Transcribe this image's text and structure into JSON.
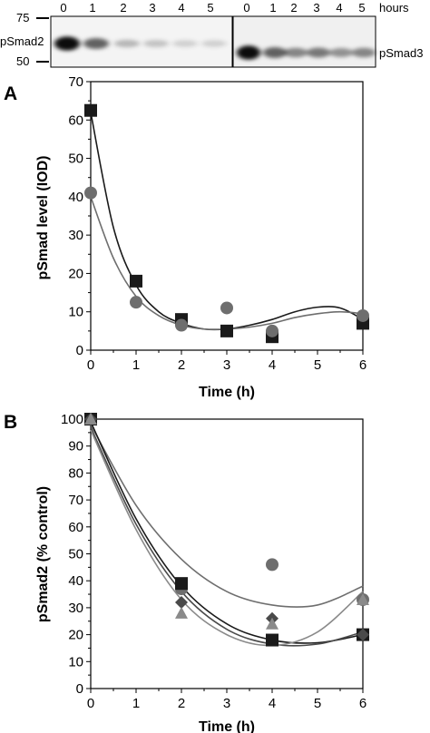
{
  "blot": {
    "time_labels_left": [
      "0",
      "1",
      "2",
      "3",
      "4",
      "5"
    ],
    "time_labels_right": [
      "0",
      "1",
      "2",
      "3",
      "4",
      "5"
    ],
    "hours_label": "hours",
    "marker_75": "75",
    "marker_50": "50",
    "band_label_left": "pSmad2",
    "band_label_right": "pSmad3",
    "left_band_intensity": [
      0.95,
      0.6,
      0.25,
      0.2,
      0.15,
      0.15
    ],
    "right_band_intensity": [
      0.95,
      0.6,
      0.45,
      0.5,
      0.4,
      0.45
    ]
  },
  "chart_data": [
    {
      "type": "scatter",
      "panel": "A",
      "xlabel": "Time (h)",
      "ylabel": "pSmad level (IOD)",
      "xlim": [
        0,
        6
      ],
      "ylim": [
        0,
        70
      ],
      "xticks": [
        0,
        1,
        2,
        3,
        4,
        5,
        6
      ],
      "yticks": [
        0,
        10,
        20,
        30,
        40,
        50,
        60,
        70
      ],
      "grid": false,
      "series": [
        {
          "marker": "square",
          "color": "#1a1a1a",
          "points": [
            [
              0,
              62.5
            ],
            [
              1,
              18
            ],
            [
              2,
              8
            ],
            [
              3,
              5
            ],
            [
              4,
              3.5
            ],
            [
              6,
              7
            ]
          ],
          "fit": [
            [
              0,
              62
            ],
            [
              0.5,
              32
            ],
            [
              1,
              17
            ],
            [
              1.5,
              10
            ],
            [
              2,
              7
            ],
            [
              2.5,
              5.5
            ],
            [
              3,
              5.5
            ],
            [
              3.5,
              6.5
            ],
            [
              4,
              8
            ],
            [
              4.5,
              10
            ],
            [
              5,
              11.2
            ],
            [
              5.5,
              11
            ],
            [
              6,
              8
            ]
          ]
        },
        {
          "marker": "circle",
          "color": "#6e6e6e",
          "points": [
            [
              0,
              41
            ],
            [
              1,
              12.5
            ],
            [
              2,
              6.5
            ],
            [
              3,
              11
            ],
            [
              4,
              5
            ],
            [
              6,
              9
            ]
          ],
          "fit": [
            [
              0,
              40
            ],
            [
              0.5,
              24
            ],
            [
              1,
              14
            ],
            [
              1.5,
              9
            ],
            [
              2,
              6.5
            ],
            [
              2.5,
              5.5
            ],
            [
              3,
              5.5
            ],
            [
              3.5,
              6
            ],
            [
              4,
              7
            ],
            [
              4.5,
              8.5
            ],
            [
              5,
              9.5
            ],
            [
              5.5,
              10
            ],
            [
              6,
              9.5
            ]
          ]
        }
      ]
    },
    {
      "type": "scatter",
      "panel": "B",
      "xlabel": "Time (h)",
      "ylabel": "pSmad2 (% control)",
      "xlim": [
        0,
        6
      ],
      "ylim": [
        0,
        100
      ],
      "xticks": [
        0,
        1,
        2,
        3,
        4,
        5,
        6
      ],
      "yticks": [
        0,
        10,
        20,
        30,
        40,
        50,
        60,
        70,
        80,
        90,
        100
      ],
      "grid": false,
      "series": [
        {
          "marker": "circle",
          "color": "#6e6e6e",
          "points": [
            [
              0,
              100
            ],
            [
              2,
              37
            ],
            [
              4,
              46
            ],
            [
              6,
              33
            ]
          ],
          "fit": [
            [
              0,
              98
            ],
            [
              1,
              68
            ],
            [
              2,
              48
            ],
            [
              3,
              36
            ],
            [
              4,
              31
            ],
            [
              5,
              31
            ],
            [
              6,
              38
            ]
          ]
        },
        {
          "marker": "square",
          "color": "#1a1a1a",
          "points": [
            [
              0,
              100
            ],
            [
              2,
              39
            ],
            [
              4,
              18
            ],
            [
              6,
              20
            ]
          ],
          "fit": [
            [
              0,
              99
            ],
            [
              1,
              63
            ],
            [
              2,
              38
            ],
            [
              3,
              24
            ],
            [
              4,
              18
            ],
            [
              5,
              17
            ],
            [
              6,
              20
            ]
          ]
        },
        {
          "marker": "diamond",
          "color": "#4a4a4a",
          "points": [
            [
              0,
              100
            ],
            [
              2,
              32
            ],
            [
              4,
              26
            ],
            [
              6,
              20
            ]
          ],
          "fit": [
            [
              0,
              97
            ],
            [
              1,
              61
            ],
            [
              2,
              36
            ],
            [
              3,
              22
            ],
            [
              4,
              16.5
            ],
            [
              5,
              16.5
            ],
            [
              6,
              21
            ]
          ]
        },
        {
          "marker": "triangle",
          "color": "#8a8a8a",
          "points": [
            [
              0,
              100
            ],
            [
              2,
              28
            ],
            [
              4,
              24
            ],
            [
              6,
              33
            ]
          ],
          "fit": [
            [
              0,
              96
            ],
            [
              1,
              59
            ],
            [
              2,
              33
            ],
            [
              3,
              20
            ],
            [
              4,
              16
            ],
            [
              5,
              21
            ],
            [
              6,
              36
            ]
          ]
        }
      ]
    }
  ]
}
